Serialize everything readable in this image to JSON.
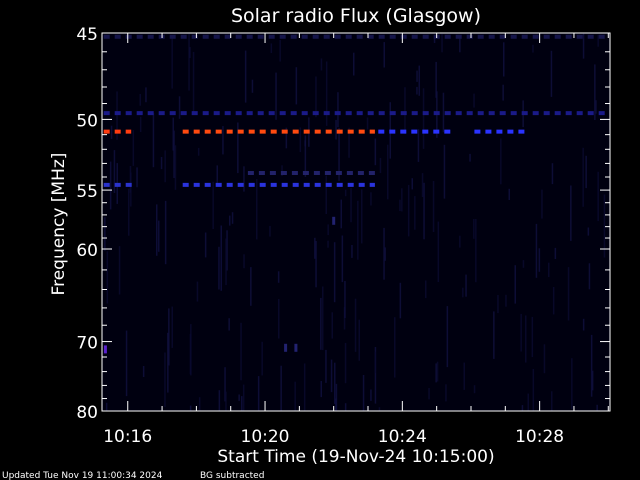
{
  "chart_data": {
    "type": "heatmap",
    "title": "Solar radio Flux (Glasgow)",
    "xlabel": "Start Time (19-Nov-24 10:15:00)",
    "ylabel": "Frequency [MHz]",
    "x_ticks": [
      "10:16",
      "10:20",
      "10:24",
      "10:28"
    ],
    "x_tick_minutes": [
      16,
      20,
      24,
      28
    ],
    "xlim_minutes": [
      15.25,
      30.05
    ],
    "y_ticks": [
      45,
      50,
      55,
      60,
      70,
      80
    ],
    "ylim": [
      80,
      45
    ],
    "y_scale": "reciprocal",
    "grid": false,
    "colors": {
      "background": "#000000",
      "text": "#ffffff",
      "low_intensity": "#1a1a66",
      "medium_intensity": "#2233ff",
      "high_intensity": "#ff4010"
    },
    "bands": [
      {
        "freq": 49.6,
        "start_min": 15.3,
        "end_min": 30.0,
        "color": "#1a1a88",
        "dashed": true
      },
      {
        "freq": 50.8,
        "start_min": 15.3,
        "end_min": 16.1,
        "color": "#ff3c10",
        "dashed": true
      },
      {
        "freq": 50.8,
        "start_min": 17.6,
        "end_min": 23.2,
        "color": "#ff4a10",
        "dashed": true
      },
      {
        "freq": 50.8,
        "start_min": 23.3,
        "end_min": 25.5,
        "color": "#2a33ff",
        "dashed": true
      },
      {
        "freq": 50.8,
        "start_min": 26.1,
        "end_min": 27.7,
        "color": "#2a33ff",
        "dashed": true
      },
      {
        "freq": 54.6,
        "start_min": 15.3,
        "end_min": 16.2,
        "color": "#2a33cc",
        "dashed": true
      },
      {
        "freq": 54.6,
        "start_min": 17.6,
        "end_min": 23.2,
        "color": "#2a33dd",
        "dashed": true
      },
      {
        "freq": 53.7,
        "start_min": 19.5,
        "end_min": 23.2,
        "color": "#22226a",
        "dashed": true
      },
      {
        "freq": 45.2,
        "start_min": 15.3,
        "end_min": 30.0,
        "color": "#15154a",
        "dashed": true
      }
    ],
    "spots": [
      {
        "freq": 71.0,
        "minute": 15.35,
        "color": "#5a22cc"
      },
      {
        "freq": 70.8,
        "minute": 20.6,
        "color": "#222270"
      },
      {
        "freq": 70.8,
        "minute": 20.9,
        "color": "#222270"
      },
      {
        "freq": 57.5,
        "minute": 22.0,
        "color": "#222270"
      }
    ]
  },
  "footer": {
    "updated": "Updated Tue Nov 19 11:00:34 2024",
    "note": "BG subtracted"
  }
}
